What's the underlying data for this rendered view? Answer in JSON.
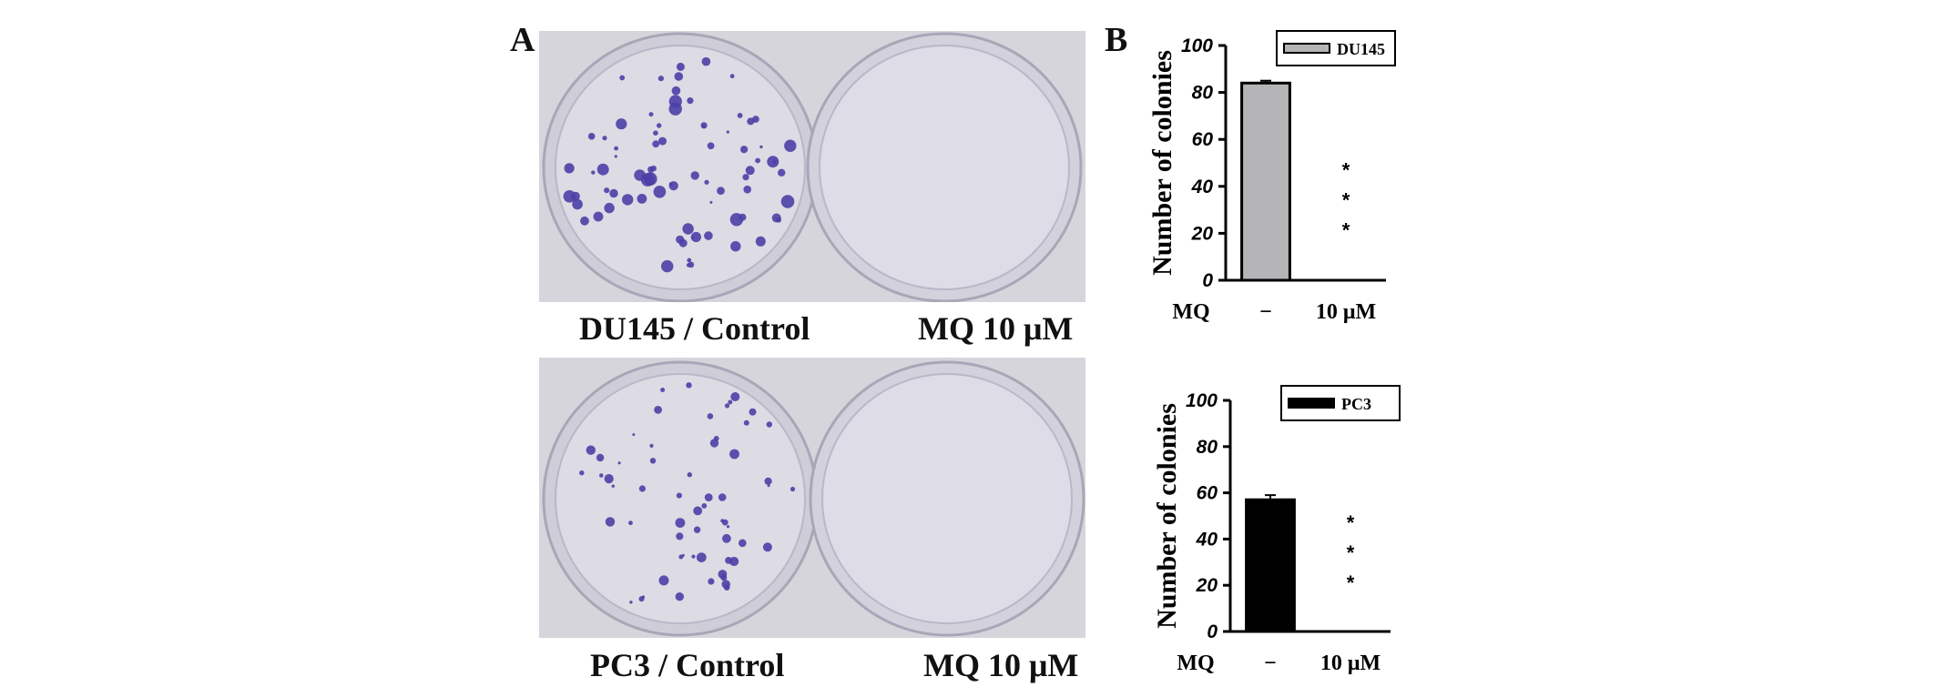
{
  "panels": {
    "a": {
      "letter": "A",
      "rows": [
        {
          "control_label": "DU145 / Control",
          "treated_label": "MQ 10 μM",
          "control_colonies": 80,
          "treated_colonies": 0
        },
        {
          "control_label": "PC3 / Control",
          "treated_label": "MQ 10 μM",
          "control_colonies": 60,
          "treated_colonies": 0
        }
      ]
    },
    "b": {
      "letter": "B"
    }
  },
  "chart_data": [
    {
      "type": "bar",
      "ylabel": "Number of colonies",
      "xlabel": "MQ",
      "categories": [
        "−",
        "10 μM"
      ],
      "series": [
        {
          "name": "DU145",
          "values": [
            84,
            0
          ],
          "error": [
            1,
            0
          ],
          "color": "#b5b5b8"
        }
      ],
      "ylim": [
        0,
        100
      ],
      "yticks": [
        0,
        20,
        40,
        60,
        80,
        100
      ],
      "annotations": [
        {
          "category": "10 μM",
          "text": "***"
        }
      ],
      "legend": "top-right"
    },
    {
      "type": "bar",
      "ylabel": "Number of colonies",
      "xlabel": "MQ",
      "categories": [
        "−",
        "10 μM"
      ],
      "series": [
        {
          "name": "PC3",
          "values": [
            57,
            0
          ],
          "error": [
            2,
            0
          ],
          "color": "#000000"
        }
      ],
      "ylim": [
        0,
        100
      ],
      "yticks": [
        0,
        20,
        40,
        60,
        80,
        100
      ],
      "annotations": [
        {
          "category": "10 μM",
          "text": "***"
        }
      ],
      "legend": "top-right"
    }
  ]
}
